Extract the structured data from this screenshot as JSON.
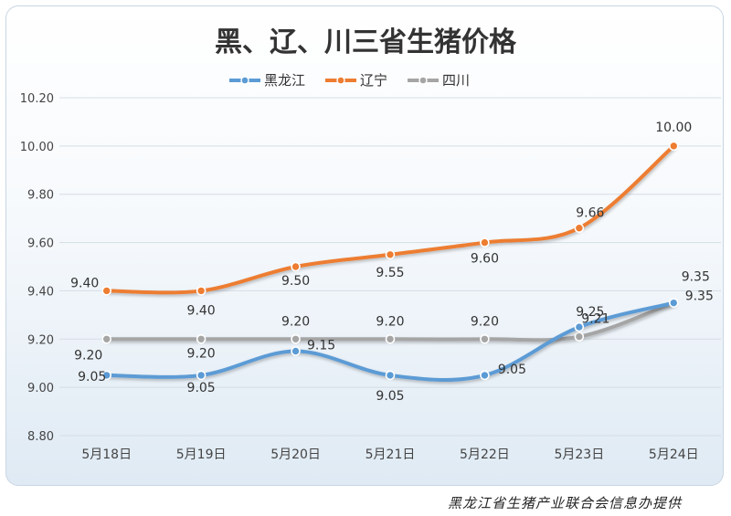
{
  "chart_data": {
    "type": "line",
    "title": "黑、辽、川三省生猪价格",
    "categories": [
      "5月18日",
      "5月19日",
      "5月20日",
      "5月21日",
      "5月22日",
      "5月23日",
      "5月24日"
    ],
    "ylim": [
      8.8,
      10.2
    ],
    "yticks": [
      "8.80",
      "9.00",
      "9.20",
      "9.40",
      "9.60",
      "9.80",
      "10.00",
      "10.20"
    ],
    "grid": true,
    "legend": "top-center",
    "series": [
      {
        "name": "黑龙江",
        "color": "#5b9bd5",
        "values": [
          9.05,
          9.05,
          9.15,
          9.05,
          9.05,
          9.25,
          9.35
        ],
        "labels": [
          "9.05",
          "9.05",
          "9.15",
          "9.05",
          "9.05",
          "9.25",
          "9.35"
        ]
      },
      {
        "name": "辽宁",
        "color": "#ed7d31",
        "values": [
          9.4,
          9.4,
          9.5,
          9.55,
          9.6,
          9.66,
          10.0
        ],
        "labels": [
          "9.40",
          "9.40",
          "9.50",
          "9.55",
          "9.60",
          "9.66",
          "10.00"
        ]
      },
      {
        "name": "四川",
        "color": "#a5a5a5",
        "values": [
          9.2,
          9.2,
          9.2,
          9.2,
          9.2,
          9.21,
          9.35
        ],
        "labels": [
          "9.20",
          "9.20",
          "9.20",
          "9.20",
          "9.20",
          "9.21",
          "9.35"
        ]
      }
    ]
  },
  "footer": {
    "source": "黑龙江省生猪产业联合会信息办提供"
  }
}
